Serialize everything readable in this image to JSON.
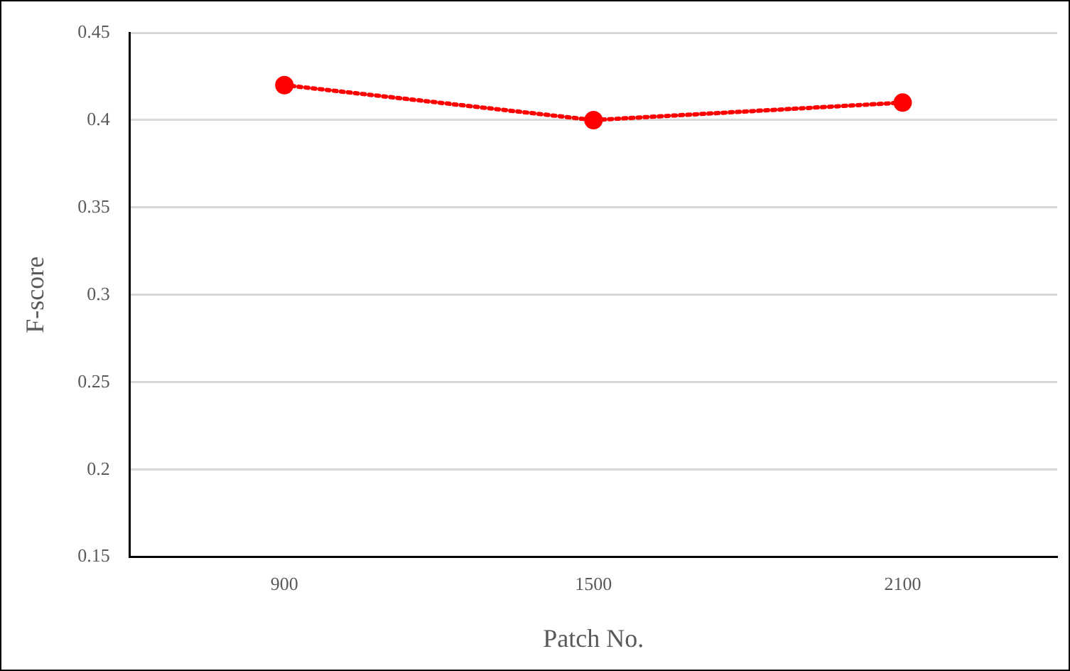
{
  "chart_data": {
    "type": "line",
    "xlabel": "Patch No.",
    "ylabel": "F-score",
    "categories": [
      "900",
      "1500",
      "2100"
    ],
    "series": [
      {
        "color": "#ff0000",
        "values": [
          0.42,
          0.4,
          0.41
        ]
      }
    ],
    "ylim": [
      0.15,
      0.45
    ],
    "yticks": [
      0.15,
      0.2,
      0.25,
      0.3,
      0.35,
      0.4,
      0.45
    ],
    "grid": "y",
    "legend": false,
    "marker": "circle",
    "line_style": "dotted"
  }
}
